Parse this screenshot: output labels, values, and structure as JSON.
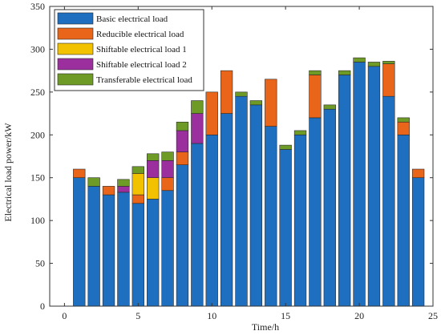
{
  "chart_data": {
    "type": "bar",
    "stacked": true,
    "xlabel": "Time/h",
    "ylabel": "Electrical load power/kW",
    "xlim": [
      -1,
      25
    ],
    "ylim": [
      0,
      350
    ],
    "x_ticks": [
      0,
      5,
      10,
      15,
      20,
      25
    ],
    "y_ticks": [
      0,
      50,
      100,
      150,
      200,
      250,
      300,
      350
    ],
    "grid": false,
    "legend_position": "top-left",
    "x": [
      1,
      2,
      3,
      4,
      5,
      6,
      7,
      8,
      9,
      10,
      11,
      12,
      13,
      14,
      15,
      16,
      17,
      18,
      19,
      20,
      21,
      22,
      23,
      24
    ],
    "series": [
      {
        "name": "Basic electrical load",
        "color": "#1f6fc1",
        "values": [
          150,
          140,
          130,
          133,
          120,
          125,
          135,
          165,
          190,
          200,
          225,
          245,
          235,
          210,
          183,
          200,
          220,
          230,
          270,
          285,
          280,
          245,
          200,
          150
        ]
      },
      {
        "name": "Reducible electrical load",
        "color": "#e8651a",
        "values": [
          10,
          0,
          10,
          0,
          10,
          0,
          15,
          15,
          0,
          50,
          50,
          0,
          0,
          55,
          0,
          0,
          50,
          0,
          0,
          0,
          0,
          38,
          15,
          10
        ]
      },
      {
        "name": "Shiftable electrical load 1",
        "color": "#f2c200",
        "values": [
          0,
          0,
          0,
          0,
          25,
          25,
          0,
          0,
          0,
          0,
          0,
          0,
          0,
          0,
          0,
          0,
          0,
          0,
          0,
          0,
          0,
          0,
          0,
          0
        ]
      },
      {
        "name": "Shiftable electrical load 2",
        "color": "#9b2f9e",
        "values": [
          0,
          0,
          0,
          7,
          0,
          20,
          20,
          25,
          35,
          0,
          0,
          0,
          0,
          0,
          0,
          0,
          0,
          0,
          0,
          0,
          0,
          0,
          0,
          0
        ]
      },
      {
        "name": "Transferable electrical load",
        "color": "#6e9b25",
        "values": [
          0,
          10,
          0,
          8,
          8,
          8,
          10,
          10,
          15,
          0,
          0,
          5,
          5,
          0,
          5,
          5,
          5,
          5,
          5,
          5,
          5,
          3,
          5,
          0
        ]
      }
    ]
  }
}
